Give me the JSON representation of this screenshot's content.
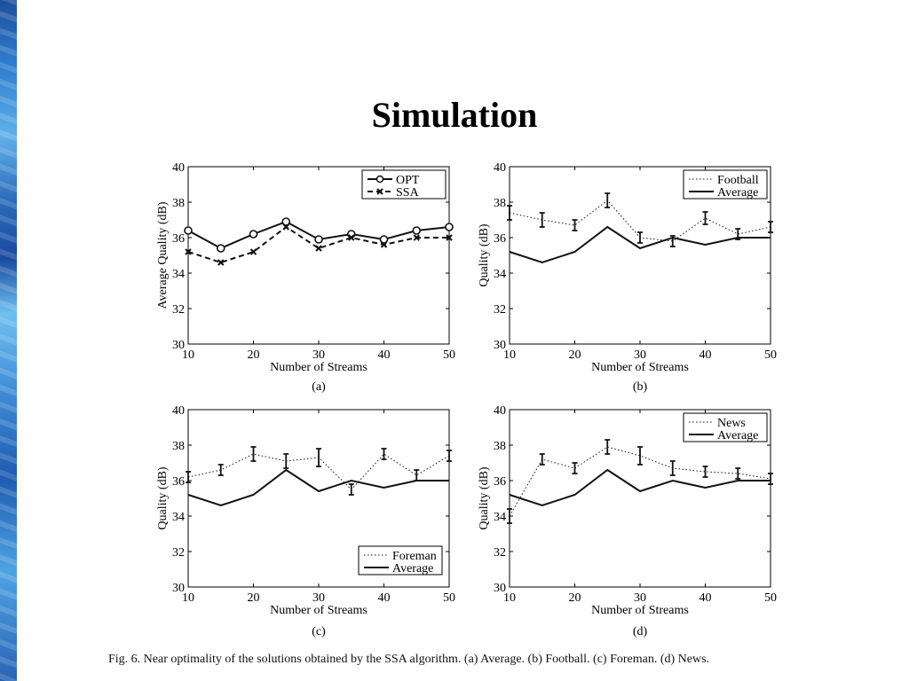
{
  "slide": {
    "title": "Simulation"
  },
  "caption": "Fig. 6.   Near optimality of the solutions obtained by the SSA algorithm. (a) Average. (b) Football. (c) Foreman. (d) News.",
  "colors": {
    "series": "#111111",
    "background": "#ffffff"
  },
  "chart_data": [
    {
      "type": "line",
      "panel": "(a)",
      "xlabel": "Number of Streams",
      "ylabel": "Average Quality (dB)",
      "xlim": [
        10,
        50
      ],
      "ylim": [
        30,
        40
      ],
      "xticks": [
        10,
        20,
        30,
        40,
        50
      ],
      "yticks": [
        30,
        32,
        34,
        36,
        38,
        40
      ],
      "x": [
        10,
        15,
        20,
        25,
        30,
        35,
        40,
        45,
        50
      ],
      "legend_position": "top-right",
      "series": [
        {
          "name": "OPT",
          "style": "solid-circle",
          "values": [
            36.4,
            35.4,
            36.2,
            36.9,
            35.9,
            36.2,
            35.9,
            36.4,
            36.6
          ]
        },
        {
          "name": "SSA",
          "style": "dashed-x",
          "values": [
            35.2,
            34.6,
            35.2,
            36.6,
            35.4,
            36.0,
            35.6,
            36.0,
            36.0
          ]
        }
      ]
    },
    {
      "type": "line",
      "panel": "(b)",
      "xlabel": "Number of Streams",
      "ylabel": "Quality (dB)",
      "xlim": [
        10,
        50
      ],
      "ylim": [
        30,
        40
      ],
      "xticks": [
        10,
        20,
        30,
        40,
        50
      ],
      "yticks": [
        30,
        32,
        34,
        36,
        38,
        40
      ],
      "x": [
        10,
        15,
        20,
        25,
        30,
        35,
        40,
        45,
        50
      ],
      "legend_position": "top-right",
      "series": [
        {
          "name": "Football",
          "style": "dotted-errorbar",
          "values": [
            37.4,
            37.0,
            36.7,
            38.1,
            36.0,
            35.8,
            37.1,
            36.2,
            36.6
          ],
          "errors": [
            0.4,
            0.4,
            0.3,
            0.4,
            0.3,
            0.3,
            0.35,
            0.3,
            0.3
          ]
        },
        {
          "name": "Average",
          "style": "solid",
          "values": [
            35.2,
            34.6,
            35.2,
            36.6,
            35.4,
            36.0,
            35.6,
            36.0,
            36.0
          ]
        }
      ]
    },
    {
      "type": "line",
      "panel": "(c)",
      "xlabel": "Number of Streams",
      "ylabel": "Quality (dB)",
      "xlim": [
        10,
        50
      ],
      "ylim": [
        30,
        40
      ],
      "xticks": [
        10,
        20,
        30,
        40,
        50
      ],
      "yticks": [
        30,
        32,
        34,
        36,
        38,
        40
      ],
      "x": [
        10,
        15,
        20,
        25,
        30,
        35,
        40,
        45,
        50
      ],
      "legend_position": "bottom-right",
      "series": [
        {
          "name": "Foreman",
          "style": "dotted-errorbar",
          "values": [
            36.2,
            36.6,
            37.5,
            37.1,
            37.3,
            35.5,
            37.5,
            36.3,
            37.4
          ],
          "errors": [
            0.3,
            0.3,
            0.4,
            0.4,
            0.5,
            0.3,
            0.3,
            0.3,
            0.3
          ]
        },
        {
          "name": "Average",
          "style": "solid",
          "values": [
            35.2,
            34.6,
            35.2,
            36.6,
            35.4,
            36.0,
            35.6,
            36.0,
            36.0
          ]
        }
      ]
    },
    {
      "type": "line",
      "panel": "(d)",
      "xlabel": "Number of Streams",
      "ylabel": "Quality (dB)",
      "xlim": [
        10,
        50
      ],
      "ylim": [
        30,
        40
      ],
      "xticks": [
        10,
        20,
        30,
        40,
        50
      ],
      "yticks": [
        30,
        32,
        34,
        36,
        38,
        40
      ],
      "x": [
        10,
        15,
        20,
        25,
        30,
        35,
        40,
        45,
        50
      ],
      "legend_position": "top-right",
      "series": [
        {
          "name": "News",
          "style": "dotted-errorbar",
          "values": [
            34.0,
            37.2,
            36.7,
            37.9,
            37.4,
            36.7,
            36.5,
            36.4,
            36.1
          ],
          "errors": [
            0.4,
            0.3,
            0.3,
            0.4,
            0.5,
            0.4,
            0.3,
            0.3,
            0.3
          ]
        },
        {
          "name": "Average",
          "style": "solid",
          "values": [
            35.2,
            34.6,
            35.2,
            36.6,
            35.4,
            36.0,
            35.6,
            36.0,
            36.0
          ]
        }
      ]
    }
  ]
}
